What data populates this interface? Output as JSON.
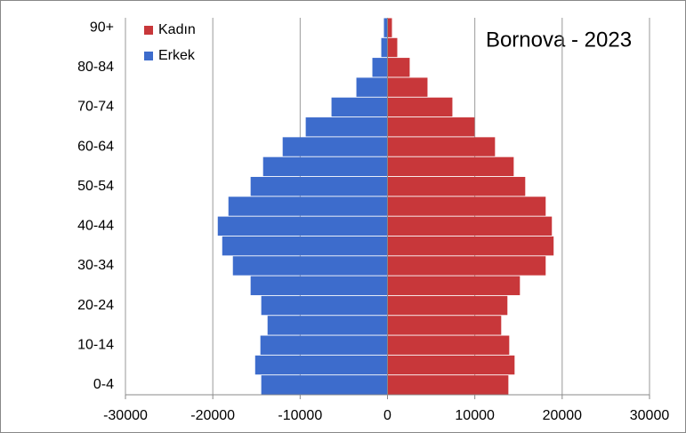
{
  "chart_data": {
    "type": "pyramid",
    "annotation": "Bornova - 2023",
    "categories": [
      "0-4",
      null,
      "10-14",
      null,
      "20-24",
      null,
      "30-34",
      null,
      "40-44",
      null,
      "50-54",
      null,
      "60-64",
      null,
      "70-74",
      null,
      "80-84",
      null,
      "90+"
    ],
    "series": [
      {
        "name": "Kadın",
        "color": "#c8373a",
        "values": [
          13840,
          14550,
          13940,
          13020,
          13730,
          15160,
          18110,
          19020,
          18820,
          18110,
          15770,
          14450,
          12310,
          9970,
          7430,
          4580,
          2540,
          1120,
          510
        ]
      },
      {
        "name": "Erkek",
        "color": "#3d6ccc",
        "values": [
          -14450,
          -15150,
          -14550,
          -13730,
          -14450,
          -15670,
          -17700,
          -18920,
          -19430,
          -18210,
          -15670,
          -14240,
          -12000,
          -9360,
          -6410,
          -3560,
          -1730,
          -710,
          -410
        ]
      }
    ],
    "xlim": [
      -30000,
      30000
    ],
    "xticks": [
      -30000,
      -20000,
      -10000,
      0,
      10000,
      20000,
      30000
    ],
    "grid": true,
    "legend": "top-left"
  }
}
